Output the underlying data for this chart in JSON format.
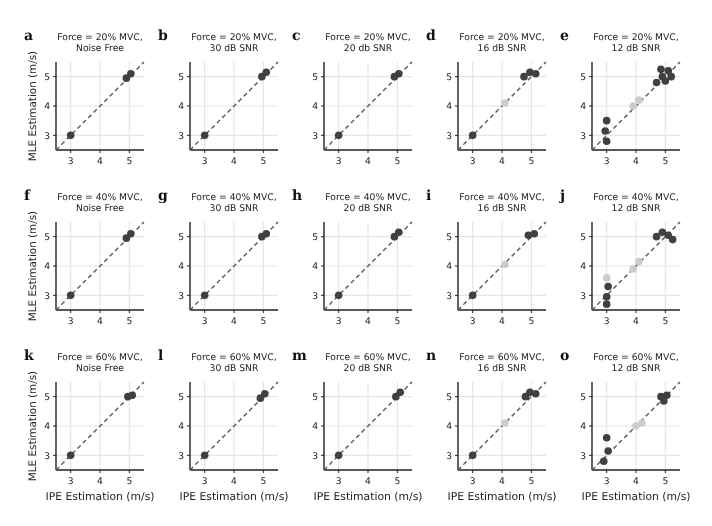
{
  "chart_data": [
    {
      "type": "scatter",
      "annotations": [
        "a"
      ],
      "title": "Force = 20% MVC,\nNoise Free",
      "ylabel": "MLE Estimation (m/s)",
      "xlim": [
        2.5,
        5.5
      ],
      "ylim": [
        2.5,
        5.5
      ],
      "xticks": [
        3,
        4,
        5
      ],
      "yticks": [
        3,
        4,
        5
      ],
      "grid": true,
      "marker": "circle",
      "series": [
        {
          "type": "line",
          "line_style": "dashed",
          "marker": "none",
          "color": "#555555",
          "x": [
            2.5,
            5.5
          ],
          "values": [
            2.5,
            5.5
          ]
        },
        {
          "color": "#404040",
          "x": [
            3.0,
            4.9,
            5.05
          ],
          "values": [
            3.0,
            4.95,
            5.1
          ]
        }
      ]
    },
    {
      "type": "scatter",
      "annotations": [
        "b"
      ],
      "title": "Force = 20% MVC,\n30 dB SNR",
      "xlim": [
        2.5,
        5.5
      ],
      "ylim": [
        2.5,
        5.5
      ],
      "xticks": [
        3,
        4,
        5
      ],
      "yticks": [
        3,
        4,
        5
      ],
      "grid": true,
      "marker": "circle",
      "series": [
        {
          "type": "line",
          "line_style": "dashed",
          "marker": "none",
          "color": "#555555",
          "x": [
            2.5,
            5.5
          ],
          "values": [
            2.5,
            5.5
          ]
        },
        {
          "color": "#404040",
          "x": [
            3.0,
            4.95,
            5.1
          ],
          "values": [
            3.0,
            5.0,
            5.15
          ]
        }
      ]
    },
    {
      "type": "scatter",
      "annotations": [
        "c"
      ],
      "title": "Force = 20% MVC,\n20 db SNR",
      "xlim": [
        2.5,
        5.5
      ],
      "ylim": [
        2.5,
        5.5
      ],
      "xticks": [
        3,
        4,
        5
      ],
      "yticks": [
        3,
        4,
        5
      ],
      "grid": true,
      "marker": "circle",
      "series": [
        {
          "type": "line",
          "line_style": "dashed",
          "marker": "none",
          "color": "#555555",
          "x": [
            2.5,
            5.5
          ],
          "values": [
            2.5,
            5.5
          ]
        },
        {
          "color": "#404040",
          "x": [
            3.0,
            4.9,
            5.05
          ],
          "values": [
            3.0,
            5.0,
            5.1
          ]
        }
      ]
    },
    {
      "type": "scatter",
      "annotations": [
        "d"
      ],
      "title": "Force = 20% MVC,\n16 dB SNR",
      "xlim": [
        2.5,
        5.5
      ],
      "ylim": [
        2.5,
        5.5
      ],
      "xticks": [
        3,
        4,
        5
      ],
      "yticks": [
        3,
        4,
        5
      ],
      "grid": true,
      "marker": "circle",
      "series": [
        {
          "type": "line",
          "line_style": "dashed",
          "marker": "none",
          "color": "#555555",
          "x": [
            2.5,
            5.5
          ],
          "values": [
            2.5,
            5.5
          ]
        },
        {
          "color": "#cccccc",
          "x": [
            4.1
          ],
          "values": [
            4.1
          ]
        },
        {
          "color": "#404040",
          "x": [
            3.0,
            4.75,
            4.95,
            5.15
          ],
          "values": [
            3.0,
            5.0,
            5.15,
            5.1
          ]
        }
      ]
    },
    {
      "type": "scatter",
      "annotations": [
        "e"
      ],
      "title": "Force = 20% MVC,\n12 dB SNR",
      "xlim": [
        2.5,
        5.5
      ],
      "ylim": [
        2.5,
        5.5
      ],
      "xticks": [
        3,
        4,
        5
      ],
      "yticks": [
        3,
        4,
        5
      ],
      "grid": true,
      "marker": "circle",
      "series": [
        {
          "type": "line",
          "line_style": "dashed",
          "marker": "none",
          "color": "#555555",
          "x": [
            2.5,
            5.5
          ],
          "values": [
            2.5,
            5.5
          ]
        },
        {
          "color": "#cccccc",
          "x": [
            3.9,
            4.1
          ],
          "values": [
            4.0,
            4.2
          ]
        },
        {
          "color": "#404040",
          "x": [
            3.0,
            2.95,
            3.0,
            4.7,
            4.9,
            5.1,
            5.0,
            4.85,
            5.2
          ],
          "values": [
            2.8,
            3.15,
            3.5,
            4.8,
            5.0,
            5.2,
            4.85,
            5.25,
            5.0
          ]
        }
      ]
    },
    {
      "type": "scatter",
      "annotations": [
        "f"
      ],
      "title": "Force = 40% MVC,\nNoise Free",
      "ylabel": "MLE Estimation (m/s)",
      "xlim": [
        2.5,
        5.5
      ],
      "ylim": [
        2.5,
        5.5
      ],
      "xticks": [
        3,
        4,
        5
      ],
      "yticks": [
        3,
        4,
        5
      ],
      "grid": true,
      "marker": "circle",
      "series": [
        {
          "type": "line",
          "line_style": "dashed",
          "marker": "none",
          "color": "#555555",
          "x": [
            2.5,
            5.5
          ],
          "values": [
            2.5,
            5.5
          ]
        },
        {
          "color": "#404040",
          "x": [
            3.0,
            4.9,
            5.05
          ],
          "values": [
            3.0,
            4.95,
            5.1
          ]
        }
      ]
    },
    {
      "type": "scatter",
      "annotations": [
        "g"
      ],
      "title": "Force = 40% MVC,\n30 dB SNR",
      "xlim": [
        2.5,
        5.5
      ],
      "ylim": [
        2.5,
        5.5
      ],
      "xticks": [
        3,
        4,
        5
      ],
      "yticks": [
        3,
        4,
        5
      ],
      "grid": true,
      "marker": "circle",
      "series": [
        {
          "type": "line",
          "line_style": "dashed",
          "marker": "none",
          "color": "#555555",
          "x": [
            2.5,
            5.5
          ],
          "values": [
            2.5,
            5.5
          ]
        },
        {
          "color": "#404040",
          "x": [
            3.0,
            4.95,
            5.1
          ],
          "values": [
            3.0,
            5.0,
            5.1
          ]
        }
      ]
    },
    {
      "type": "scatter",
      "annotations": [
        "h"
      ],
      "title": "Force = 40% MVC,\n20 dB SNR",
      "xlim": [
        2.5,
        5.5
      ],
      "ylim": [
        2.5,
        5.5
      ],
      "xticks": [
        3,
        4,
        5
      ],
      "yticks": [
        3,
        4,
        5
      ],
      "grid": true,
      "marker": "circle",
      "series": [
        {
          "type": "line",
          "line_style": "dashed",
          "marker": "none",
          "color": "#555555",
          "x": [
            2.5,
            5.5
          ],
          "values": [
            2.5,
            5.5
          ]
        },
        {
          "color": "#404040",
          "x": [
            3.0,
            4.9,
            5.05
          ],
          "values": [
            3.0,
            5.0,
            5.15
          ]
        }
      ]
    },
    {
      "type": "scatter",
      "annotations": [
        "i"
      ],
      "title": "Force = 40% MVC,\n16 dB SNR",
      "xlim": [
        2.5,
        5.5
      ],
      "ylim": [
        2.5,
        5.5
      ],
      "xticks": [
        3,
        4,
        5
      ],
      "yticks": [
        3,
        4,
        5
      ],
      "grid": true,
      "marker": "circle",
      "series": [
        {
          "type": "line",
          "line_style": "dashed",
          "marker": "none",
          "color": "#555555",
          "x": [
            2.5,
            5.5
          ],
          "values": [
            2.5,
            5.5
          ]
        },
        {
          "color": "#cccccc",
          "x": [
            4.1
          ],
          "values": [
            4.05
          ]
        },
        {
          "color": "#404040",
          "x": [
            3.0,
            4.9,
            5.1
          ],
          "values": [
            3.0,
            5.05,
            5.1
          ]
        }
      ]
    },
    {
      "type": "scatter",
      "annotations": [
        "j"
      ],
      "title": "Force = 40% MVC,\n12 dB SNR",
      "xlim": [
        2.5,
        5.5
      ],
      "ylim": [
        2.5,
        5.5
      ],
      "xticks": [
        3,
        4,
        5
      ],
      "yticks": [
        3,
        4,
        5
      ],
      "grid": true,
      "marker": "circle",
      "series": [
        {
          "type": "line",
          "line_style": "dashed",
          "marker": "none",
          "color": "#555555",
          "x": [
            2.5,
            5.5
          ],
          "values": [
            2.5,
            5.5
          ]
        },
        {
          "color": "#cccccc",
          "x": [
            3.9,
            4.1,
            3.0
          ],
          "values": [
            3.9,
            4.15,
            3.6
          ]
        },
        {
          "color": "#404040",
          "x": [
            3.0,
            3.0,
            3.05,
            4.7,
            4.9,
            5.1,
            5.25
          ],
          "values": [
            2.7,
            2.95,
            3.3,
            5.0,
            5.15,
            5.05,
            4.9
          ]
        }
      ]
    },
    {
      "type": "scatter",
      "annotations": [
        "k"
      ],
      "title": "Force = 60% MVC,\nNoise Free",
      "xlabel": "IPE Estimation (m/s)",
      "ylabel": "MLE Estimation (m/s)",
      "xlim": [
        2.5,
        5.5
      ],
      "ylim": [
        2.5,
        5.5
      ],
      "xticks": [
        3,
        4,
        5
      ],
      "yticks": [
        3,
        4,
        5
      ],
      "grid": true,
      "marker": "circle",
      "series": [
        {
          "type": "line",
          "line_style": "dashed",
          "marker": "none",
          "color": "#555555",
          "x": [
            2.5,
            5.5
          ],
          "values": [
            2.5,
            5.5
          ]
        },
        {
          "color": "#404040",
          "x": [
            3.0,
            4.95,
            5.1
          ],
          "values": [
            3.0,
            5.0,
            5.05
          ]
        }
      ]
    },
    {
      "type": "scatter",
      "annotations": [
        "l"
      ],
      "title": "Force = 60% MVC,\n30 dB SNR",
      "xlabel": "IPE Estimation (m/s)",
      "xlim": [
        2.5,
        5.5
      ],
      "ylim": [
        2.5,
        5.5
      ],
      "xticks": [
        3,
        4,
        5
      ],
      "yticks": [
        3,
        4,
        5
      ],
      "grid": true,
      "marker": "circle",
      "series": [
        {
          "type": "line",
          "line_style": "dashed",
          "marker": "none",
          "color": "#555555",
          "x": [
            2.5,
            5.5
          ],
          "values": [
            2.5,
            5.5
          ]
        },
        {
          "color": "#404040",
          "x": [
            3.0,
            4.9,
            5.05
          ],
          "values": [
            3.0,
            4.95,
            5.1
          ]
        }
      ]
    },
    {
      "type": "scatter",
      "annotations": [
        "m"
      ],
      "title": "Force = 60% MVC,\n20 dB SNR",
      "xlabel": "IPE Estimation (m/s)",
      "xlim": [
        2.5,
        5.5
      ],
      "ylim": [
        2.5,
        5.5
      ],
      "xticks": [
        3,
        4,
        5
      ],
      "yticks": [
        3,
        4,
        5
      ],
      "grid": true,
      "marker": "circle",
      "series": [
        {
          "type": "line",
          "line_style": "dashed",
          "marker": "none",
          "color": "#555555",
          "x": [
            2.5,
            5.5
          ],
          "values": [
            2.5,
            5.5
          ]
        },
        {
          "color": "#404040",
          "x": [
            3.0,
            4.95,
            5.1
          ],
          "values": [
            3.0,
            5.0,
            5.15
          ]
        }
      ]
    },
    {
      "type": "scatter",
      "annotations": [
        "n"
      ],
      "title": "Force = 60% MVC,\n16 dB SNR",
      "xlabel": "IPE Estimation (m/s)",
      "xlim": [
        2.5,
        5.5
      ],
      "ylim": [
        2.5,
        5.5
      ],
      "xticks": [
        3,
        4,
        5
      ],
      "yticks": [
        3,
        4,
        5
      ],
      "grid": true,
      "marker": "circle",
      "series": [
        {
          "type": "line",
          "line_style": "dashed",
          "marker": "none",
          "color": "#555555",
          "x": [
            2.5,
            5.5
          ],
          "values": [
            2.5,
            5.5
          ]
        },
        {
          "color": "#cccccc",
          "x": [
            4.1
          ],
          "values": [
            4.1
          ]
        },
        {
          "color": "#404040",
          "x": [
            3.0,
            4.8,
            4.95,
            5.15
          ],
          "values": [
            3.0,
            5.0,
            5.15,
            5.1
          ]
        }
      ]
    },
    {
      "type": "scatter",
      "annotations": [
        "o"
      ],
      "title": "Force = 60% MVC,\n12 dB SNR",
      "xlabel": "IPE Estimation (m/s)",
      "xlim": [
        2.5,
        5.5
      ],
      "ylim": [
        2.5,
        5.5
      ],
      "xticks": [
        3,
        4,
        5
      ],
      "yticks": [
        3,
        4,
        5
      ],
      "grid": true,
      "marker": "circle",
      "series": [
        {
          "type": "line",
          "line_style": "dashed",
          "marker": "none",
          "color": "#555555",
          "x": [
            2.5,
            5.5
          ],
          "values": [
            2.5,
            5.5
          ]
        },
        {
          "color": "#cccccc",
          "x": [
            4.0,
            4.2
          ],
          "values": [
            4.0,
            4.1
          ]
        },
        {
          "color": "#404040",
          "x": [
            2.9,
            3.05,
            3.0,
            4.85,
            5.05,
            4.95
          ],
          "values": [
            2.8,
            3.15,
            3.6,
            5.0,
            5.05,
            4.85
          ]
        }
      ]
    }
  ]
}
